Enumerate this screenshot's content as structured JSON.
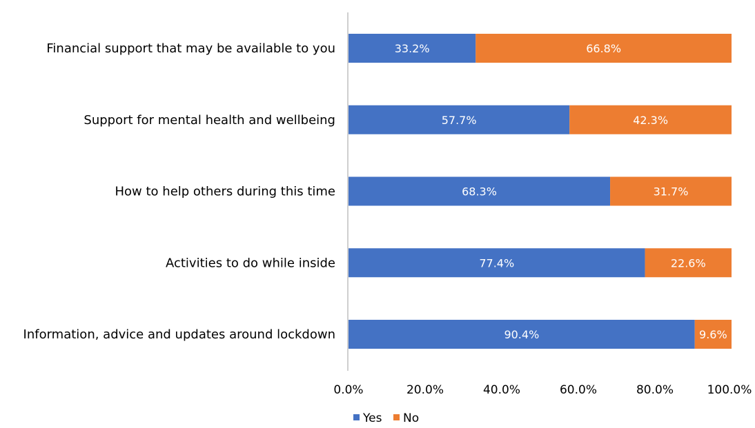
{
  "chart_data": {
    "type": "bar",
    "orientation": "horizontal",
    "stacked": true,
    "title": "",
    "xlabel": "",
    "ylabel": "",
    "categories": [
      "Financial support that may be available to you",
      "Support for mental health and wellbeing",
      "How to help others during this time",
      "Activities to do while inside",
      "Information, advice and updates around lockdown"
    ],
    "series": [
      {
        "name": "Yes",
        "color": "#4472C4",
        "values": [
          33.2,
          57.7,
          68.3,
          77.4,
          90.4
        ],
        "labels": [
          "33.2%",
          "57.7%",
          "68.3%",
          "77.4%",
          "90.4%"
        ]
      },
      {
        "name": "No",
        "color": "#ED7D31",
        "values": [
          66.8,
          42.3,
          31.7,
          22.6,
          9.6
        ],
        "labels": [
          "66.8%",
          "42.3%",
          "31.7%",
          "22.6%",
          "9.6%"
        ]
      }
    ],
    "xlim": [
      0,
      100
    ],
    "x_ticks": [
      "0.0%",
      "20.0%",
      "40.0%",
      "60.0%",
      "80.0%",
      "100.0%"
    ],
    "grid": false,
    "legend_position": "bottom"
  }
}
